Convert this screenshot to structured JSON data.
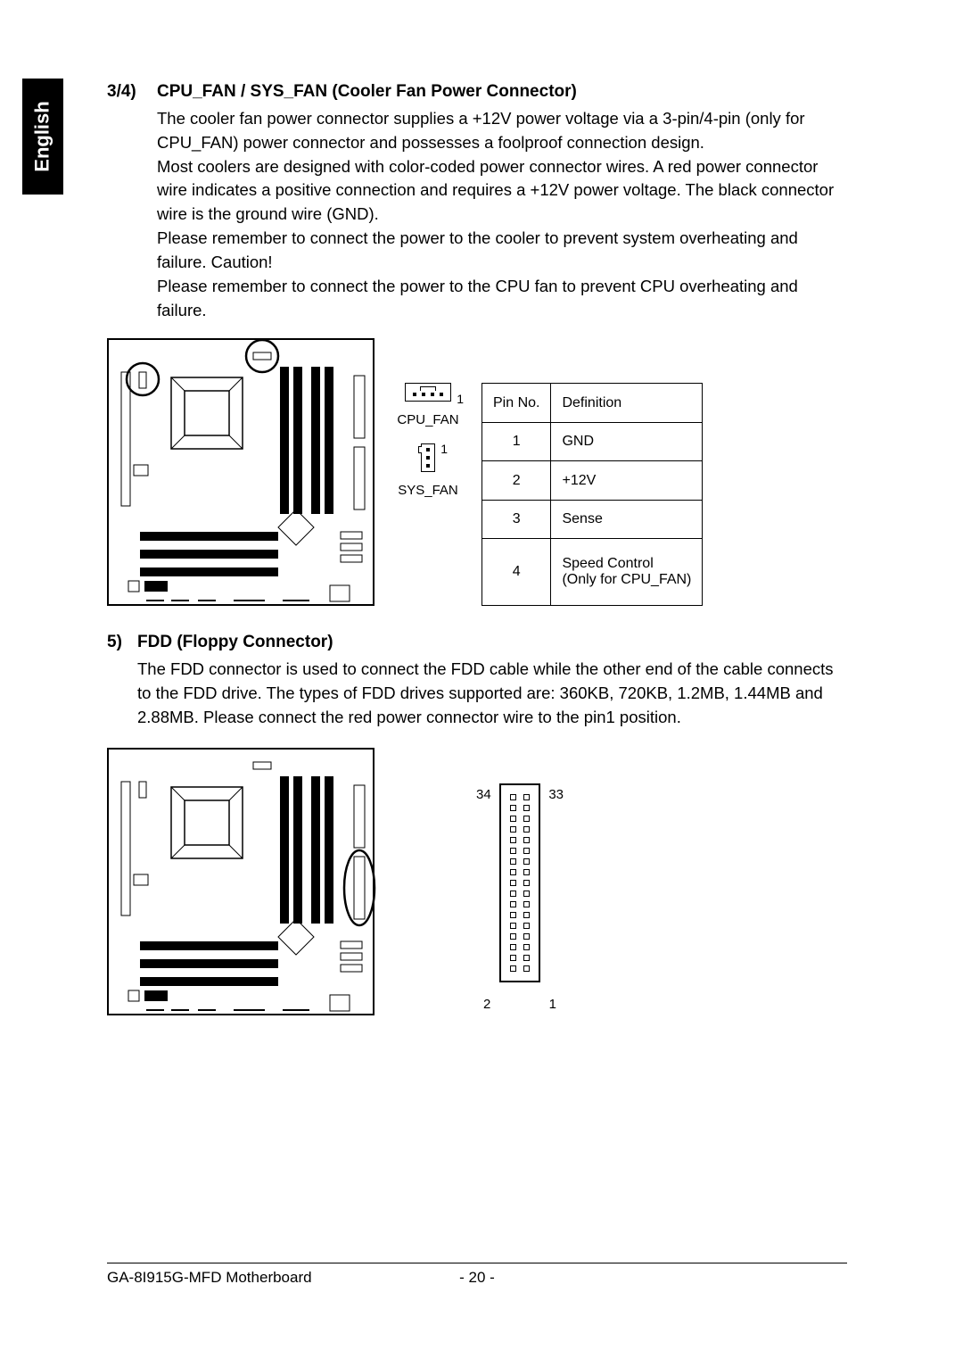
{
  "sideTab": "English",
  "section34": {
    "num": "3/4)",
    "title": "CPU_FAN / SYS_FAN (Cooler Fan Power Connector)",
    "para": "The cooler fan power connector supplies a +12V power voltage via a 3-pin/4-pin (only for CPU_FAN) power connector and possesses a foolproof connection design.\nMost coolers are designed with color-coded power connector wires. A red power connector wire indicates a positive connection and requires a +12V power voltage. The black connector wire is the ground wire (GND).\nPlease remember to connect the power to the cooler to prevent system overheating and failure. Caution!\nPlease remember to connect the power to the CPU fan to prevent CPU overheating and failure."
  },
  "connectors": {
    "cpuFanLabel": "CPU_FAN",
    "sysFanLabel": "SYS_FAN",
    "pinOne": "1"
  },
  "pinTable": {
    "headers": [
      "Pin No.",
      "Definition"
    ],
    "rows": [
      [
        "1",
        "GND"
      ],
      [
        "2",
        "+12V"
      ],
      [
        "3",
        "Sense"
      ],
      [
        "4",
        "Speed Control\n(Only for CPU_FAN)"
      ]
    ]
  },
  "section5": {
    "num": "5)",
    "title": "FDD (Floppy Connector)",
    "para": "The FDD connector is used to connect the FDD cable while the other end of the cable connects to the FDD drive. The types of FDD drives supported are: 360KB, 720KB, 1.2MB, 1.44MB and 2.88MB. Please connect the red power connector wire to the pin1 position."
  },
  "fddLabels": {
    "tl": "34",
    "tr": "33",
    "bl": "2",
    "br": "1"
  },
  "footer": {
    "left": "GA-8I915G-MFD Motherboard",
    "page": "- 20 -"
  }
}
